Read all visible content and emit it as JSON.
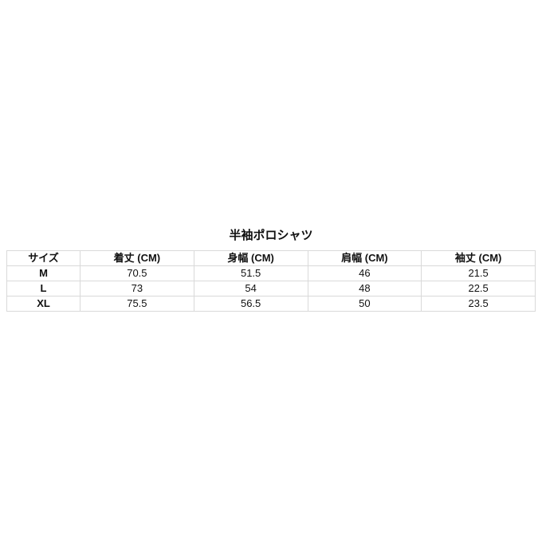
{
  "page": {
    "background_color": "#ffffff",
    "text_color": "#111111",
    "table_border_color": "#d9d9d9"
  },
  "chart_data": {
    "type": "table",
    "title": "半袖ポロシャツ",
    "columns": [
      "サイズ",
      "着丈 (CM)",
      "身幅 (CM)",
      "肩幅 (CM)",
      "袖丈 (CM)"
    ],
    "rows": [
      [
        "M",
        "70.5",
        "51.5",
        "46",
        "21.5"
      ],
      [
        "L",
        "73",
        "54",
        "48",
        "22.5"
      ],
      [
        "XL",
        "75.5",
        "56.5",
        "50",
        "23.5"
      ]
    ],
    "units": "CM",
    "layout": {
      "title_position": "top-center",
      "grid": true
    }
  }
}
